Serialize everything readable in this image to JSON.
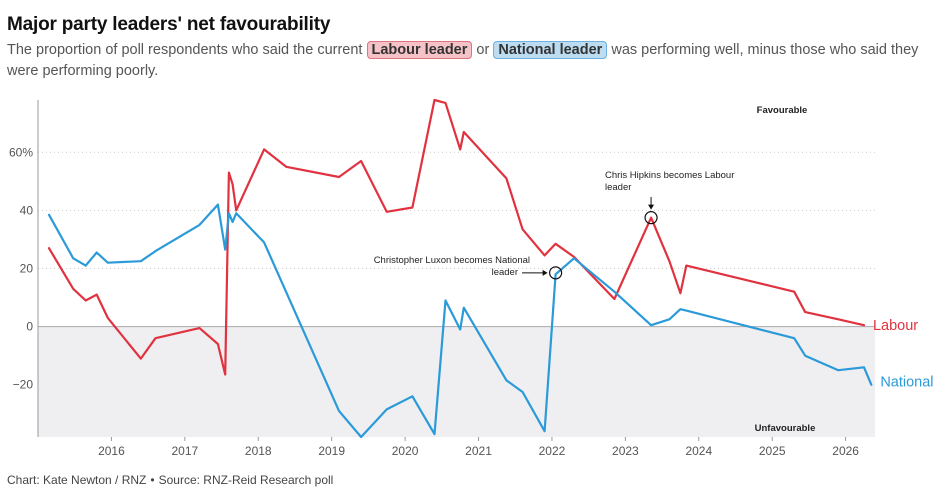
{
  "title": "Major party leaders' net favourability",
  "subtitle": {
    "before": "The proportion of poll respondents who said the current",
    "labour_pill": "Labour leader",
    "or": "or",
    "national_pill": "National leader",
    "after": "was performing well, minus those who said they were performing poorly."
  },
  "footer": {
    "credit": "Chart: Kate Newton / RNZ",
    "source": "Source: RNZ-Reid Research poll"
  },
  "colors": {
    "labour": "#e0323f",
    "national": "#2b9ad9",
    "negative_band": "#efeff2",
    "grid": "#cccccc"
  },
  "chart_data": {
    "type": "line",
    "title": "Major party leaders' net favourability",
    "xlabel": "",
    "ylabel": "",
    "xlim": [
      2015.0,
      2026.4
    ],
    "ylim": [
      -38,
      78
    ],
    "y_ticks": [
      -20,
      0,
      20,
      40,
      60
    ],
    "y_tick_labels": [
      "−20",
      "0",
      "20",
      "40",
      "60%"
    ],
    "x_ticks": [
      2016,
      2017,
      2018,
      2019,
      2020,
      2021,
      2022,
      2023,
      2024,
      2025,
      2026
    ],
    "x_tick_labels": [
      "2016",
      "2017",
      "2018",
      "2019",
      "2020",
      "2021",
      "2022",
      "2023",
      "2024",
      "2025",
      "2026"
    ],
    "region_labels": {
      "favourable": "Favourable",
      "unfavourable": "Unfavourable"
    },
    "series": [
      {
        "name": "Labour",
        "color": "#e0323f",
        "x": [
          2015.15,
          2015.48,
          2015.65,
          2015.8,
          2015.95,
          2016.4,
          2016.6,
          2017.2,
          2017.45,
          2017.55,
          2017.6,
          2017.65,
          2017.7,
          2018.08,
          2018.38,
          2019.1,
          2019.4,
          2019.75,
          2020.1,
          2020.4,
          2020.55,
          2020.75,
          2020.8,
          2021.38,
          2021.6,
          2021.9,
          2022.05,
          2022.3,
          2022.85,
          2023.35,
          2023.6,
          2023.75,
          2023.83,
          2025.3,
          2025.45,
          2025.9,
          2026.25
        ],
        "y": [
          27,
          13,
          9,
          11,
          3,
          -11,
          -4,
          -0.5,
          -6,
          -16.5,
          53,
          49,
          40,
          61,
          55,
          51.5,
          57,
          39.5,
          41,
          78,
          77,
          61,
          67,
          51,
          33.5,
          24.5,
          28.5,
          24,
          9.5,
          37.5,
          22.5,
          11.5,
          21,
          12,
          5,
          2.5,
          0.5
        ]
      },
      {
        "name": "National",
        "color": "#2b9ad9",
        "x": [
          2015.15,
          2015.48,
          2015.65,
          2015.8,
          2015.95,
          2016.4,
          2016.6,
          2017.2,
          2017.45,
          2017.55,
          2017.6,
          2017.65,
          2017.7,
          2018.08,
          2019.1,
          2019.4,
          2019.75,
          2020.1,
          2020.4,
          2020.55,
          2020.75,
          2020.8,
          2021.38,
          2021.6,
          2021.9,
          2022.05,
          2022.3,
          2022.85,
          2023.35,
          2023.6,
          2023.75,
          2023.83,
          2025.3,
          2025.45,
          2025.9,
          2026.25,
          2026.35
        ],
        "y": [
          38.5,
          23.5,
          21,
          25.5,
          22,
          22.5,
          26,
          35,
          42,
          26.5,
          39,
          36,
          39,
          29,
          -29,
          -38,
          -28.5,
          -24,
          -37,
          9,
          -1,
          6.5,
          -18.5,
          -22.5,
          -36,
          18,
          23.5,
          12,
          0.5,
          2.5,
          6,
          5.5,
          -4,
          -10,
          -15,
          -14,
          -20
        ]
      }
    ],
    "annotations": [
      {
        "text_lines": [
          "Christopher Luxon becomes National",
          "leader"
        ],
        "x": 2022.05,
        "y": 18.5
      },
      {
        "text_lines": [
          "Chris Hipkins becomes Labour",
          "leader"
        ],
        "x": 2023.35,
        "y": 37.5
      }
    ]
  }
}
